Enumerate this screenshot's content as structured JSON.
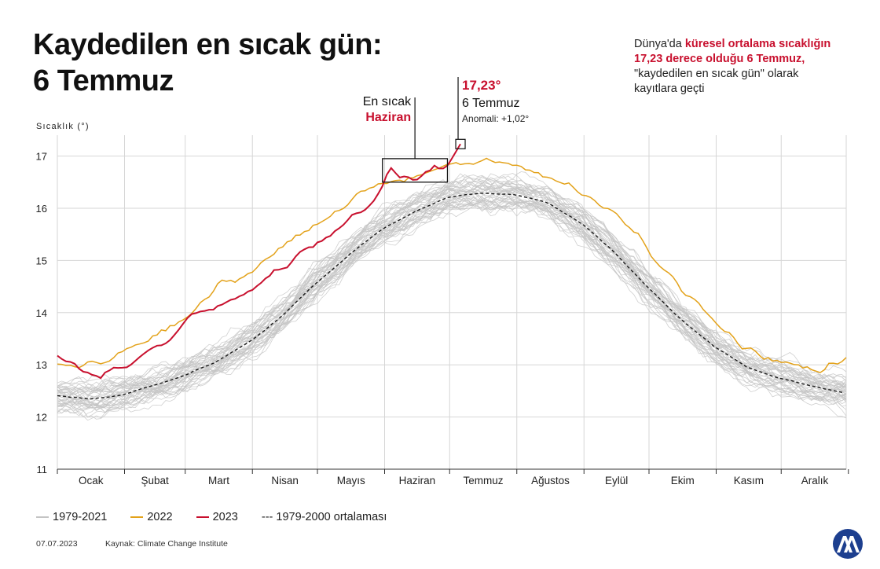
{
  "title": {
    "line1": "Kaydedilen en sıcak gün:",
    "line2": "6 Temmuz"
  },
  "note": {
    "p1": "Dünya'da ",
    "h1": "küresel ortalama sıcaklığın",
    "h2": "17,23 derece olduğu 6 Temmuz,",
    "p2": "\"kaydedilen en sıcak gün\" olarak",
    "p3": "kayıtlara geçti"
  },
  "legend": {
    "hist": "1979-2021",
    "y2022": "2022",
    "y2023": "2023",
    "avg": "--- 1979-2000 ortalaması"
  },
  "footer": {
    "date": "07.07.2023",
    "source": "Kaynak: Climate Change Institute"
  },
  "colors": {
    "hist": "#c4c4c4",
    "y2022": "#e3a21a",
    "y2023": "#c8102e",
    "avg": "#1a1a1a",
    "grid": "#d6d6d6"
  },
  "chart_data": {
    "type": "line",
    "title": "Kaydedilen en sıcak gün: 6 Temmuz",
    "ylabel": "Sıcaklık (°)",
    "xlabel": "",
    "ylim": [
      11,
      17.4
    ],
    "xlim": [
      1,
      365
    ],
    "yticks": [
      "11",
      "12",
      "13",
      "14",
      "15",
      "16",
      "17"
    ],
    "categories": [
      "Ocak",
      "Şubat",
      "Mart",
      "Nisan",
      "Mayıs",
      "Haziran",
      "Temmuz",
      "Ağustos",
      "Eylül",
      "Ekim",
      "Kasım",
      "Aralık"
    ],
    "grid": true,
    "series": [
      {
        "name": "1979-2021",
        "style": "band",
        "note": "one line per year, grey"
      },
      {
        "name": "2022",
        "x": [
          1,
          15,
          25,
          35,
          45,
          55,
          65,
          75,
          85,
          95,
          105,
          115,
          125,
          135,
          145,
          155,
          165,
          175,
          185,
          195,
          205,
          215,
          225,
          235,
          245,
          255,
          265,
          275,
          285,
          295,
          305,
          315,
          325,
          335,
          345,
          355,
          365
        ],
        "values": [
          12.95,
          13.0,
          13.05,
          13.35,
          13.55,
          13.75,
          14.05,
          14.5,
          14.65,
          14.95,
          15.25,
          15.55,
          15.85,
          16.1,
          16.35,
          16.5,
          16.6,
          16.78,
          16.85,
          16.9,
          16.88,
          16.78,
          16.6,
          16.45,
          16.28,
          16.0,
          15.6,
          15.15,
          14.65,
          14.2,
          13.8,
          13.45,
          13.2,
          13.05,
          12.95,
          12.9,
          13.15
        ]
      },
      {
        "name": "2023",
        "x": [
          1,
          10,
          20,
          30,
          40,
          50,
          60,
          70,
          80,
          90,
          100,
          110,
          120,
          130,
          140,
          150,
          155,
          160,
          165,
          170,
          175,
          180,
          183,
          187
        ],
        "values": [
          13.15,
          12.95,
          12.75,
          12.95,
          13.1,
          13.4,
          13.8,
          14.1,
          14.2,
          14.35,
          14.75,
          15.0,
          15.3,
          15.6,
          15.95,
          16.35,
          16.8,
          16.6,
          16.55,
          16.6,
          16.8,
          16.75,
          16.95,
          17.23
        ]
      },
      {
        "name": "1979-2000 ortalaması",
        "x": [
          1,
          15,
          31,
          46,
          59,
          74,
          90,
          105,
          120,
          135,
          151,
          166,
          181,
          196,
          212,
          227,
          243,
          258,
          273,
          288,
          304,
          319,
          334,
          349,
          365
        ],
        "values": [
          12.4,
          12.35,
          12.42,
          12.6,
          12.78,
          13.05,
          13.45,
          13.95,
          14.55,
          15.1,
          15.6,
          15.95,
          16.2,
          16.28,
          16.27,
          16.1,
          15.7,
          15.15,
          14.5,
          13.9,
          13.35,
          12.95,
          12.75,
          12.6,
          12.45
        ]
      }
    ],
    "annotations": [
      {
        "text": "17,23°",
        "x": 187,
        "y": 17.23
      },
      {
        "text": "6 Temmuz",
        "x": 187,
        "y": 17.23
      },
      {
        "text": "Anomali: +1,02°",
        "x": 187,
        "y": 17.23
      },
      {
        "text": "En sıcak",
        "x": 165,
        "y": 16.7
      },
      {
        "text": "Haziran",
        "x": 165,
        "y": 16.7
      }
    ]
  }
}
